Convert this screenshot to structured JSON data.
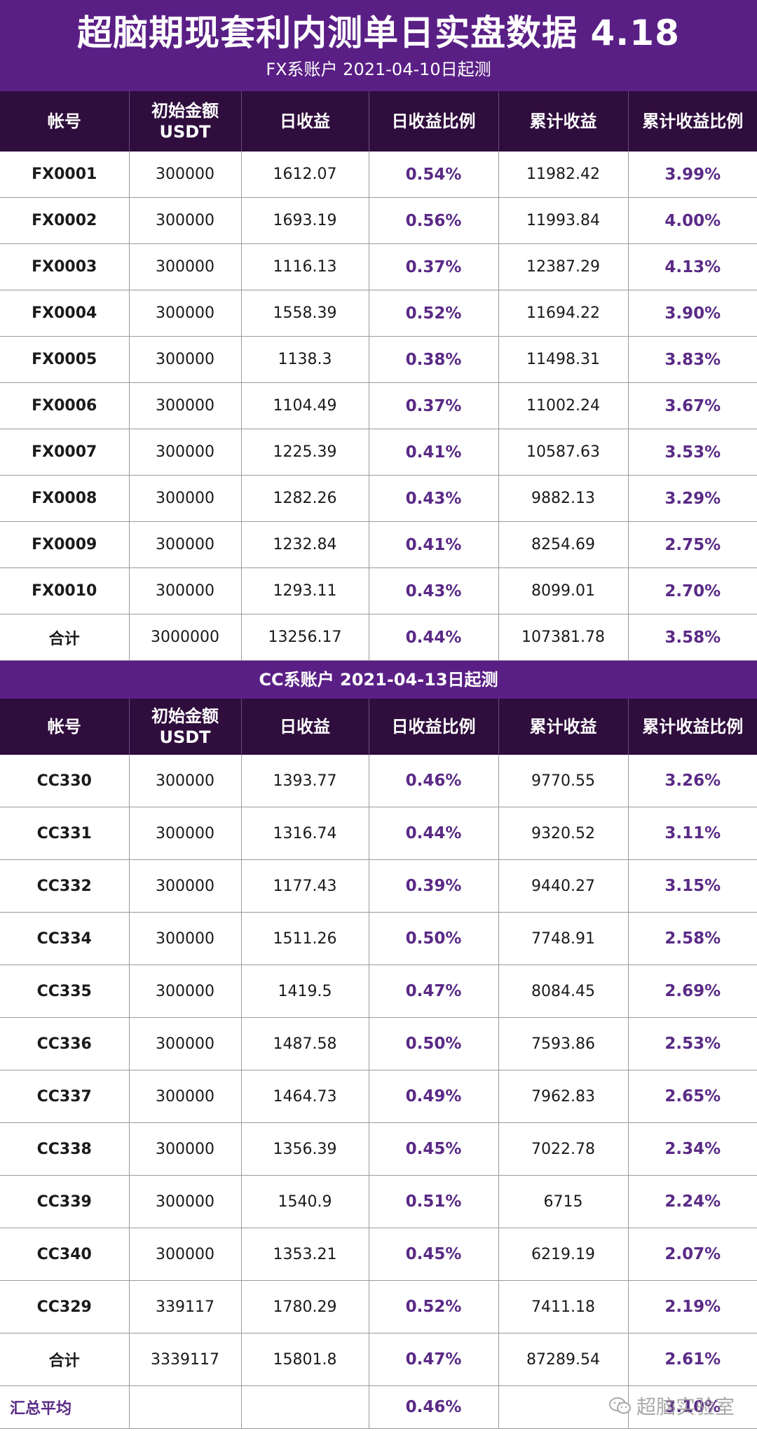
{
  "header": {
    "title": "超脑期现套利内测单日实盘数据 4.18",
    "subtitle": "FX系账户 2021-04-10日起测"
  },
  "columns": [
    "帐号",
    "初始金额\nUSDT",
    "日收益",
    "日收益比例",
    "累计收益",
    "累计收益比例"
  ],
  "fx": {
    "rows": [
      [
        "FX0001",
        "300000",
        "1612.07",
        "0.54%",
        "11982.42",
        "3.99%"
      ],
      [
        "FX0002",
        "300000",
        "1693.19",
        "0.56%",
        "11993.84",
        "4.00%"
      ],
      [
        "FX0003",
        "300000",
        "1116.13",
        "0.37%",
        "12387.29",
        "4.13%"
      ],
      [
        "FX0004",
        "300000",
        "1558.39",
        "0.52%",
        "11694.22",
        "3.90%"
      ],
      [
        "FX0005",
        "300000",
        "1138.3",
        "0.38%",
        "11498.31",
        "3.83%"
      ],
      [
        "FX0006",
        "300000",
        "1104.49",
        "0.37%",
        "11002.24",
        "3.67%"
      ],
      [
        "FX0007",
        "300000",
        "1225.39",
        "0.41%",
        "10587.63",
        "3.53%"
      ],
      [
        "FX0008",
        "300000",
        "1282.26",
        "0.43%",
        "9882.13",
        "3.29%"
      ],
      [
        "FX0009",
        "300000",
        "1232.84",
        "0.41%",
        "8254.69",
        "2.75%"
      ],
      [
        "FX0010",
        "300000",
        "1293.11",
        "0.43%",
        "8099.01",
        "2.70%"
      ],
      [
        "合计",
        "3000000",
        "13256.17",
        "0.44%",
        "107381.78",
        "3.58%"
      ]
    ]
  },
  "cc": {
    "title": "CC系账户 2021-04-13日起测",
    "rows": [
      [
        "CC330",
        "300000",
        "1393.77",
        "0.46%",
        "9770.55",
        "3.26%"
      ],
      [
        "CC331",
        "300000",
        "1316.74",
        "0.44%",
        "9320.52",
        "3.11%"
      ],
      [
        "CC332",
        "300000",
        "1177.43",
        "0.39%",
        "9440.27",
        "3.15%"
      ],
      [
        "CC334",
        "300000",
        "1511.26",
        "0.50%",
        "7748.91",
        "2.58%"
      ],
      [
        "CC335",
        "300000",
        "1419.5",
        "0.47%",
        "8084.45",
        "2.69%"
      ],
      [
        "CC336",
        "300000",
        "1487.58",
        "0.50%",
        "7593.86",
        "2.53%"
      ],
      [
        "CC337",
        "300000",
        "1464.73",
        "0.49%",
        "7962.83",
        "2.65%"
      ],
      [
        "CC338",
        "300000",
        "1356.39",
        "0.45%",
        "7022.78",
        "2.34%"
      ],
      [
        "CC339",
        "300000",
        "1540.9",
        "0.51%",
        "6715",
        "2.24%"
      ],
      [
        "CC340",
        "300000",
        "1353.21",
        "0.45%",
        "6219.19",
        "2.07%"
      ],
      [
        "CC329",
        "339117",
        "1780.29",
        "0.52%",
        "7411.18",
        "2.19%"
      ],
      [
        "合计",
        "3339117",
        "15801.8",
        "0.47%",
        "87289.54",
        "2.61%"
      ]
    ]
  },
  "summary": {
    "label": "汇总平均",
    "initial": "",
    "daily": "",
    "daily_pct": "0.46%",
    "cum": "",
    "cum_pct": "3.10%"
  },
  "watermark": {
    "text": "超脑实验室",
    "icon": "wechat-logo-icon"
  },
  "colors": {
    "header_purple": "#5a1f85",
    "column_header_dark": "#2f0d3d",
    "percent_purple": "#5a2a86"
  }
}
